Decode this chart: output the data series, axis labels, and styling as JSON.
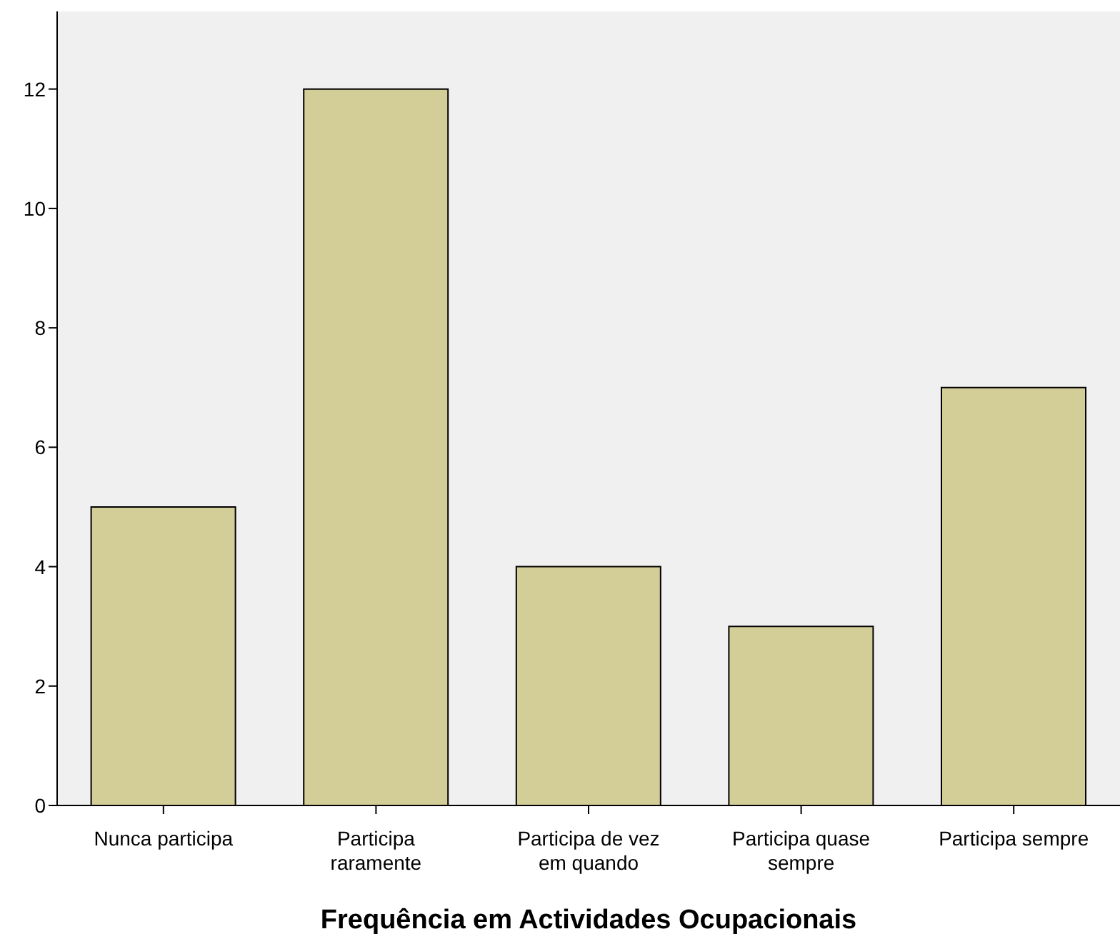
{
  "chart_data": {
    "type": "bar",
    "xlabel": "Frequência em Actividades Ocupacionais",
    "categories": [
      "Nunca participa",
      "Participa raramente",
      "Participa de vez em quando",
      "Participa quase sempre",
      "Participa sempre"
    ],
    "values": [
      5,
      12,
      4,
      3,
      7
    ],
    "color": "#d3ce97",
    "ylim": [
      0,
      13.3
    ],
    "yticks": [
      0,
      2,
      4,
      6,
      8,
      10,
      12
    ],
    "grid": false
  }
}
